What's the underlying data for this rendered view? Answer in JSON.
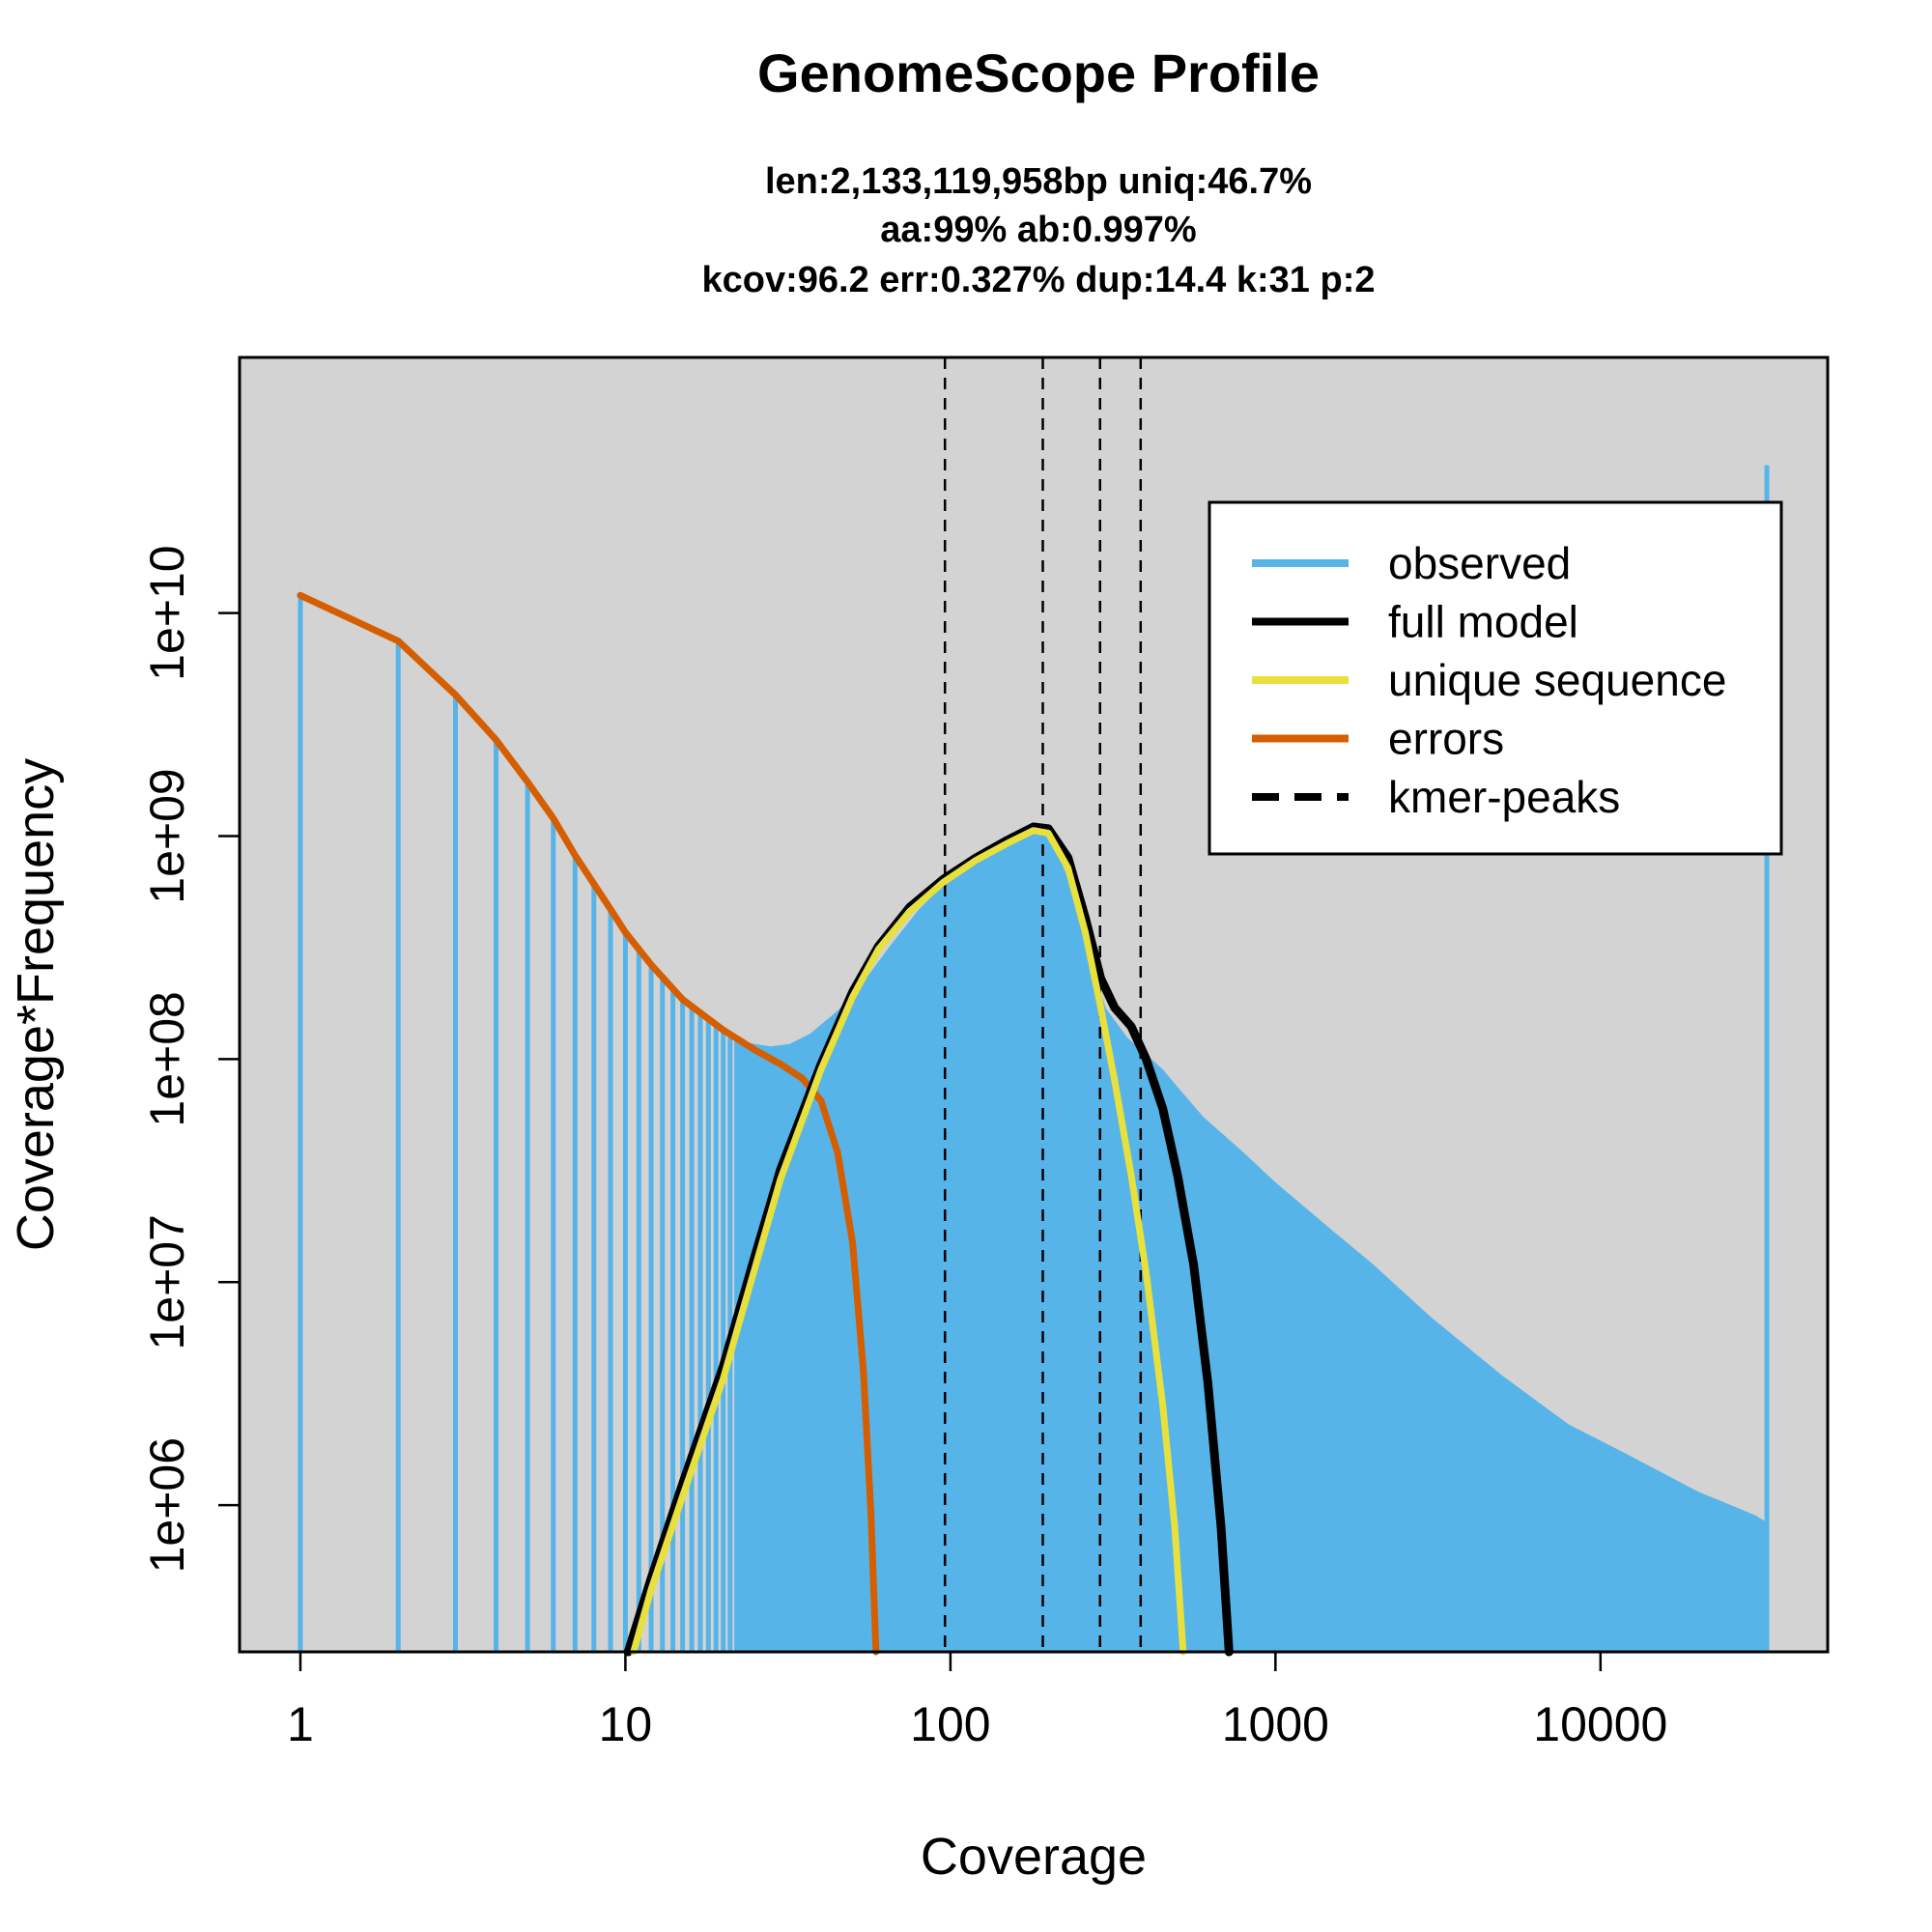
{
  "chart_data": {
    "type": "line",
    "title": "GenomeScope Profile",
    "subtitle_lines": [
      "len:2,133,119,958bp uniq:46.7%",
      "aa:99% ab:0.997%",
      "kcov:96.2 err:0.327%  dup:14.4  k:31 p:2"
    ],
    "xlabel": "Coverage",
    "ylabel": "Coverage*Frequency",
    "x_scale": "log",
    "y_scale": "log",
    "xlim": [
      0.65,
      50000
    ],
    "ylim": [
      220000,
      140000000000
    ],
    "x_ticks": [
      {
        "value": 1,
        "label": "1"
      },
      {
        "value": 10,
        "label": "10"
      },
      {
        "value": 100,
        "label": "100"
      },
      {
        "value": 1000,
        "label": "1000"
      },
      {
        "value": 10000,
        "label": "10000"
      }
    ],
    "y_ticks": [
      {
        "value": 1000000,
        "label": "1e+06"
      },
      {
        "value": 10000000,
        "label": "1e+07"
      },
      {
        "value": 100000000,
        "label": "1e+08"
      },
      {
        "value": 1000000000,
        "label": "1e+09"
      },
      {
        "value": 10000000000,
        "label": "1e+10"
      }
    ],
    "plot_background": "#d3d3d3",
    "kmer_peaks": [
      96.2,
      192.4,
      288.6,
      384.8
    ],
    "observed_spikes": [
      {
        "x": 1,
        "y": 12000000000
      },
      {
        "x": 2,
        "y": 7500000000
      },
      {
        "x": 3,
        "y": 4200000000
      },
      {
        "x": 4,
        "y": 2700000000
      },
      {
        "x": 5,
        "y": 1750000000
      },
      {
        "x": 6,
        "y": 1200000000
      },
      {
        "x": 7,
        "y": 820000000
      },
      {
        "x": 8,
        "y": 610000000
      },
      {
        "x": 9,
        "y": 470000000
      },
      {
        "x": 10,
        "y": 370000000
      },
      {
        "x": 11,
        "y": 310000000
      },
      {
        "x": 12,
        "y": 265000000
      },
      {
        "x": 13,
        "y": 230000000
      },
      {
        "x": 14,
        "y": 205000000
      },
      {
        "x": 15,
        "y": 185000000
      },
      {
        "x": 16,
        "y": 170000000
      },
      {
        "x": 17,
        "y": 158000000
      },
      {
        "x": 18,
        "y": 148000000
      },
      {
        "x": 19,
        "y": 140000000
      },
      {
        "x": 20,
        "y": 133000000
      },
      {
        "x": 21,
        "y": 127000000
      },
      {
        "x": 22,
        "y": 122000000
      }
    ],
    "observed_outline": [
      {
        "x": 22,
        "y": 122000000
      },
      {
        "x": 25,
        "y": 117000000
      },
      {
        "x": 28,
        "y": 114000000
      },
      {
        "x": 32,
        "y": 117000000
      },
      {
        "x": 37,
        "y": 130000000
      },
      {
        "x": 45,
        "y": 165000000
      },
      {
        "x": 55,
        "y": 230000000
      },
      {
        "x": 65,
        "y": 320000000
      },
      {
        "x": 80,
        "y": 470000000
      },
      {
        "x": 100,
        "y": 650000000
      },
      {
        "x": 125,
        "y": 830000000
      },
      {
        "x": 150,
        "y": 960000000
      },
      {
        "x": 180,
        "y": 1070000000
      },
      {
        "x": 200,
        "y": 1040000000
      },
      {
        "x": 230,
        "y": 650000000
      },
      {
        "x": 270,
        "y": 280000000
      },
      {
        "x": 300,
        "y": 170000000
      },
      {
        "x": 350,
        "y": 125000000
      },
      {
        "x": 400,
        "y": 105000000
      },
      {
        "x": 450,
        "y": 90000000
      },
      {
        "x": 500,
        "y": 75000000
      },
      {
        "x": 600,
        "y": 55000000
      },
      {
        "x": 800,
        "y": 38000000
      },
      {
        "x": 1000,
        "y": 28000000
      },
      {
        "x": 1500,
        "y": 17000000
      },
      {
        "x": 2000,
        "y": 12000000
      },
      {
        "x": 3000,
        "y": 7000000
      },
      {
        "x": 5000,
        "y": 3800000
      },
      {
        "x": 8000,
        "y": 2300000
      },
      {
        "x": 12000,
        "y": 1700000
      },
      {
        "x": 20000,
        "y": 1150000
      },
      {
        "x": 30000,
        "y": 900000
      },
      {
        "x": 32000,
        "y": 850000
      }
    ],
    "observed_last_spike": {
      "x": 32500,
      "y": 46000000000
    },
    "series": [
      {
        "name": "full model",
        "color": "#000000",
        "points": [
          {
            "x": 10.2,
            "y": 220000
          },
          {
            "x": 12,
            "y": 470000
          },
          {
            "x": 15,
            "y": 1250000
          },
          {
            "x": 20,
            "y": 4200000
          },
          {
            "x": 25,
            "y": 13000000
          },
          {
            "x": 30,
            "y": 32000000
          },
          {
            "x": 40,
            "y": 95000000
          },
          {
            "x": 50,
            "y": 200000000
          },
          {
            "x": 60,
            "y": 320000000
          },
          {
            "x": 75,
            "y": 480000000
          },
          {
            "x": 95,
            "y": 640000000
          },
          {
            "x": 120,
            "y": 800000000
          },
          {
            "x": 150,
            "y": 960000000
          },
          {
            "x": 180,
            "y": 1100000000
          },
          {
            "x": 200,
            "y": 1080000000
          },
          {
            "x": 230,
            "y": 800000000
          },
          {
            "x": 260,
            "y": 430000000
          },
          {
            "x": 290,
            "y": 230000000
          },
          {
            "x": 320,
            "y": 170000000
          },
          {
            "x": 360,
            "y": 140000000
          },
          {
            "x": 400,
            "y": 100000000
          },
          {
            "x": 450,
            "y": 60000000
          },
          {
            "x": 500,
            "y": 30000000
          },
          {
            "x": 560,
            "y": 12000000
          },
          {
            "x": 620,
            "y": 3500000
          },
          {
            "x": 680,
            "y": 800000
          },
          {
            "x": 720,
            "y": 220000
          }
        ]
      },
      {
        "name": "unique sequence",
        "color": "#e8e03c",
        "points": [
          {
            "x": 10.6,
            "y": 220000
          },
          {
            "x": 12,
            "y": 420000
          },
          {
            "x": 15,
            "y": 1100000
          },
          {
            "x": 20,
            "y": 3700000
          },
          {
            "x": 25,
            "y": 11500000
          },
          {
            "x": 30,
            "y": 29000000
          },
          {
            "x": 40,
            "y": 90000000
          },
          {
            "x": 50,
            "y": 190000000
          },
          {
            "x": 60,
            "y": 310000000
          },
          {
            "x": 75,
            "y": 460000000
          },
          {
            "x": 95,
            "y": 620000000
          },
          {
            "x": 120,
            "y": 780000000
          },
          {
            "x": 150,
            "y": 930000000
          },
          {
            "x": 180,
            "y": 1060000000
          },
          {
            "x": 200,
            "y": 1030000000
          },
          {
            "x": 230,
            "y": 720000000
          },
          {
            "x": 260,
            "y": 370000000
          },
          {
            "x": 290,
            "y": 170000000
          },
          {
            "x": 320,
            "y": 80000000
          },
          {
            "x": 360,
            "y": 30000000
          },
          {
            "x": 400,
            "y": 11000000
          },
          {
            "x": 450,
            "y": 2800000
          },
          {
            "x": 490,
            "y": 800000
          },
          {
            "x": 520,
            "y": 220000
          }
        ]
      },
      {
        "name": "errors",
        "color": "#d55e00",
        "points": [
          {
            "x": 1,
            "y": 12000000000
          },
          {
            "x": 2,
            "y": 7500000000
          },
          {
            "x": 3,
            "y": 4300000000
          },
          {
            "x": 4,
            "y": 2700000000
          },
          {
            "x": 5,
            "y": 1750000000
          },
          {
            "x": 6,
            "y": 1200000000
          },
          {
            "x": 7,
            "y": 820000000
          },
          {
            "x": 8,
            "y": 610000000
          },
          {
            "x": 9,
            "y": 470000000
          },
          {
            "x": 10,
            "y": 370000000
          },
          {
            "x": 12,
            "y": 265000000
          },
          {
            "x": 15,
            "y": 185000000
          },
          {
            "x": 20,
            "y": 135000000
          },
          {
            "x": 25,
            "y": 110000000
          },
          {
            "x": 30,
            "y": 95000000
          },
          {
            "x": 35,
            "y": 82000000
          },
          {
            "x": 40,
            "y": 65000000
          },
          {
            "x": 45,
            "y": 38000000
          },
          {
            "x": 50,
            "y": 15000000
          },
          {
            "x": 54,
            "y": 4000000
          },
          {
            "x": 57,
            "y": 900000
          },
          {
            "x": 59,
            "y": 220000
          }
        ]
      }
    ],
    "legend": {
      "placement": "top-right",
      "entries": [
        {
          "label": "observed",
          "color": "#56b4e9",
          "style": "solid"
        },
        {
          "label": "full model",
          "color": "#000000",
          "style": "solid"
        },
        {
          "label": "unique sequence",
          "color": "#e8e03c",
          "style": "solid"
        },
        {
          "label": "errors",
          "color": "#d55e00",
          "style": "solid"
        },
        {
          "label": "kmer-peaks",
          "color": "#000000",
          "style": "dashed"
        }
      ]
    }
  }
}
